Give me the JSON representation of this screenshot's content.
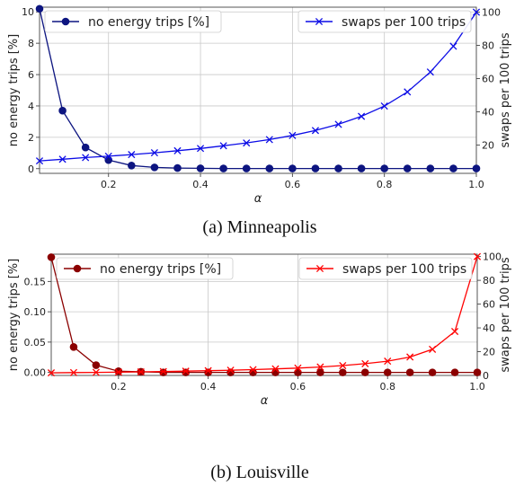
{
  "chart_data": [
    {
      "type": "line",
      "caption": "(a) Minneapolis",
      "xlabel": "α",
      "ylabel_left": "no energy trips [%]",
      "ylabel_right": "swaps per 100 trips",
      "xlim": [
        0.05,
        1.0
      ],
      "ylim_left": [
        -0.3,
        10.3
      ],
      "ylim_right": [
        3,
        103
      ],
      "xticks": [
        "0.2",
        "0.4",
        "0.6",
        "0.8",
        "1.0"
      ],
      "xtick_values": [
        0.2,
        0.4,
        0.6,
        0.8,
        1.0
      ],
      "yticks_left": [
        "0",
        "2",
        "4",
        "6",
        "8",
        "10"
      ],
      "ytick_left_values": [
        0,
        2,
        4,
        6,
        8,
        10
      ],
      "yticks_right": [
        "20",
        "40",
        "60",
        "80",
        "100"
      ],
      "ytick_right_values": [
        20,
        40,
        60,
        80,
        100
      ],
      "grid": true,
      "x": [
        0.05,
        0.1,
        0.15,
        0.2,
        0.25,
        0.3,
        0.35,
        0.4,
        0.45,
        0.5,
        0.55,
        0.6,
        0.65,
        0.7,
        0.75,
        0.8,
        0.85,
        0.9,
        0.95,
        1.0
      ],
      "series": [
        {
          "name": "no energy trips [%]",
          "axis": "left",
          "marker": "circle",
          "color": "#0d1580",
          "legend_position": "upper-left",
          "values": [
            10.2,
            3.7,
            1.35,
            0.55,
            0.2,
            0.08,
            0.04,
            0.02,
            0.01,
            0.01,
            0.01,
            0.01,
            0.01,
            0.01,
            0.01,
            0.01,
            0.01,
            0.01,
            0.01,
            0.01
          ]
        },
        {
          "name": "swaps per 100 trips",
          "axis": "right",
          "marker": "x",
          "color": "#0b0be6",
          "legend_position": "upper-right",
          "values": [
            10.5,
            11.5,
            12.5,
            13.3,
            14.3,
            15.4,
            16.6,
            18.0,
            19.6,
            21.3,
            23.3,
            25.8,
            28.8,
            32.5,
            37.3,
            43.5,
            52.0,
            64.0,
            79.5,
            100.0
          ]
        }
      ]
    },
    {
      "type": "line",
      "caption": "(b) Louisville",
      "xlabel": "α",
      "ylabel_left": "no energy trips [%]",
      "ylabel_right": "swaps per 100 trips",
      "xlim": [
        0.05,
        1.0
      ],
      "ylim_left": [
        -0.005,
        0.195
      ],
      "ylim_right": [
        0,
        102
      ],
      "xticks": [
        "0.2",
        "0.4",
        "0.6",
        "0.8",
        "1.0"
      ],
      "xtick_values": [
        0.2,
        0.4,
        0.6,
        0.8,
        1.0
      ],
      "yticks_left": [
        "0.00",
        "0.05",
        "0.10",
        "0.15"
      ],
      "ytick_left_values": [
        0.0,
        0.05,
        0.1,
        0.15
      ],
      "yticks_right": [
        "0",
        "20",
        "40",
        "60",
        "80",
        "100"
      ],
      "ytick_right_values": [
        0,
        20,
        40,
        60,
        80,
        100
      ],
      "grid": true,
      "x": [
        0.05,
        0.1,
        0.15,
        0.2,
        0.25,
        0.3,
        0.35,
        0.4,
        0.45,
        0.5,
        0.55,
        0.6,
        0.65,
        0.7,
        0.75,
        0.8,
        0.85,
        0.9,
        0.95,
        1.0
      ],
      "series": [
        {
          "name": "no energy trips [%]",
          "axis": "left",
          "marker": "circle",
          "color": "#8b0000",
          "legend_position": "upper-left",
          "values": [
            0.19,
            0.042,
            0.012,
            0.002,
            0.001,
            0.0,
            0.0,
            0.0,
            0.0,
            0.0,
            0.0,
            0.0,
            0.0,
            0.0,
            0.0,
            0.0,
            0.0,
            0.0,
            0.0,
            0.0
          ]
        },
        {
          "name": "swaps per 100 trips",
          "axis": "right",
          "marker": "x",
          "color": "#ff0000",
          "legend_position": "upper-right",
          "values": [
            2.2,
            2.4,
            2.6,
            2.8,
            3.0,
            3.3,
            3.6,
            4.0,
            4.4,
            4.9,
            5.5,
            6.2,
            7.1,
            8.3,
            9.9,
            12.0,
            15.5,
            22.0,
            37.0,
            100.0
          ]
        }
      ]
    }
  ]
}
